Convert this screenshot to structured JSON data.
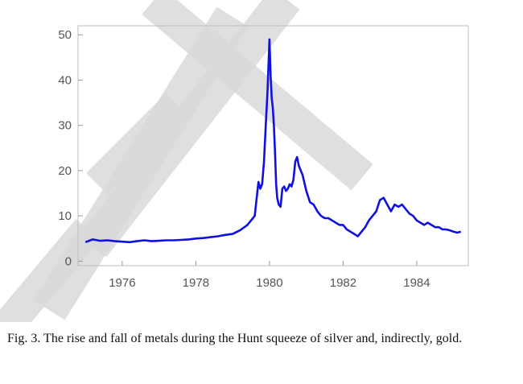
{
  "watermark_text": "DRAFT",
  "caption": "Fig. 3.  The rise and fall of metals during the Hunt squeeze of silver and, indirectly, gold.",
  "chart_data": {
    "type": "line",
    "xlim": [
      1974.8,
      1985.4
    ],
    "ylim": [
      -1,
      52
    ],
    "x_ticks": [
      1976,
      1978,
      1980,
      1982,
      1984
    ],
    "x_tick_labels": [
      "1976",
      "1978",
      "1980",
      "1982",
      "1984"
    ],
    "y_ticks": [
      0,
      10,
      20,
      30,
      40,
      50
    ],
    "y_tick_labels": [
      "0",
      "10",
      "20",
      "30",
      "40",
      "50"
    ],
    "grid": false,
    "line_color": "#1010e0",
    "series": [
      {
        "x": [
          1975.0,
          1975.2,
          1975.4,
          1975.6,
          1975.8,
          1976.0,
          1976.2,
          1976.4,
          1976.6,
          1976.8,
          1977.0,
          1977.2,
          1977.4,
          1977.6,
          1977.8,
          1978.0,
          1978.2,
          1978.4,
          1978.6,
          1978.8,
          1979.0,
          1979.2,
          1979.4,
          1979.5,
          1979.6,
          1979.7,
          1979.75,
          1979.8,
          1979.85,
          1979.9,
          1979.95,
          1980.0,
          1980.03,
          1980.06,
          1980.09,
          1980.12,
          1980.15,
          1980.18,
          1980.21,
          1980.25,
          1980.3,
          1980.35,
          1980.4,
          1980.45,
          1980.5,
          1980.55,
          1980.6,
          1980.65,
          1980.7,
          1980.75,
          1980.8,
          1980.9,
          1981.0,
          1981.1,
          1981.2,
          1981.3,
          1981.4,
          1981.5,
          1981.6,
          1981.7,
          1981.8,
          1981.9,
          1982.0,
          1982.1,
          1982.2,
          1982.3,
          1982.4,
          1982.5,
          1982.6,
          1982.7,
          1982.8,
          1982.9,
          1983.0,
          1983.1,
          1983.2,
          1983.3,
          1983.4,
          1983.5,
          1983.6,
          1983.7,
          1983.8,
          1983.9,
          1984.0,
          1984.1,
          1984.2,
          1984.3,
          1984.4,
          1984.5,
          1984.6,
          1984.7,
          1984.8,
          1984.9,
          1985.0,
          1985.1,
          1985.2
        ],
        "values": [
          4.2,
          4.8,
          4.5,
          4.6,
          4.4,
          4.3,
          4.2,
          4.4,
          4.6,
          4.4,
          4.5,
          4.6,
          4.6,
          4.7,
          4.8,
          5.0,
          5.1,
          5.3,
          5.5,
          5.8,
          6.0,
          6.8,
          8.0,
          9.0,
          10.0,
          17.5,
          16.0,
          17.0,
          22.0,
          30.0,
          38.0,
          49.0,
          41.0,
          36.0,
          34.0,
          30.0,
          24.0,
          17.0,
          14.0,
          12.5,
          12.0,
          16.0,
          16.5,
          15.5,
          16.0,
          17.0,
          16.5,
          18.0,
          22.0,
          23.0,
          21.0,
          19.0,
          15.5,
          13.0,
          12.5,
          11.0,
          10.0,
          9.5,
          9.5,
          9.0,
          8.5,
          8.0,
          8.0,
          7.0,
          6.5,
          6.0,
          5.5,
          6.5,
          7.5,
          9.0,
          10.0,
          11.0,
          13.5,
          14.0,
          12.5,
          11.0,
          12.5,
          12.0,
          12.5,
          11.5,
          10.5,
          10.0,
          9.0,
          8.5,
          8.0,
          8.5,
          8.0,
          7.5,
          7.5,
          7.0,
          7.0,
          6.8,
          6.5,
          6.3,
          6.5
        ]
      }
    ]
  }
}
